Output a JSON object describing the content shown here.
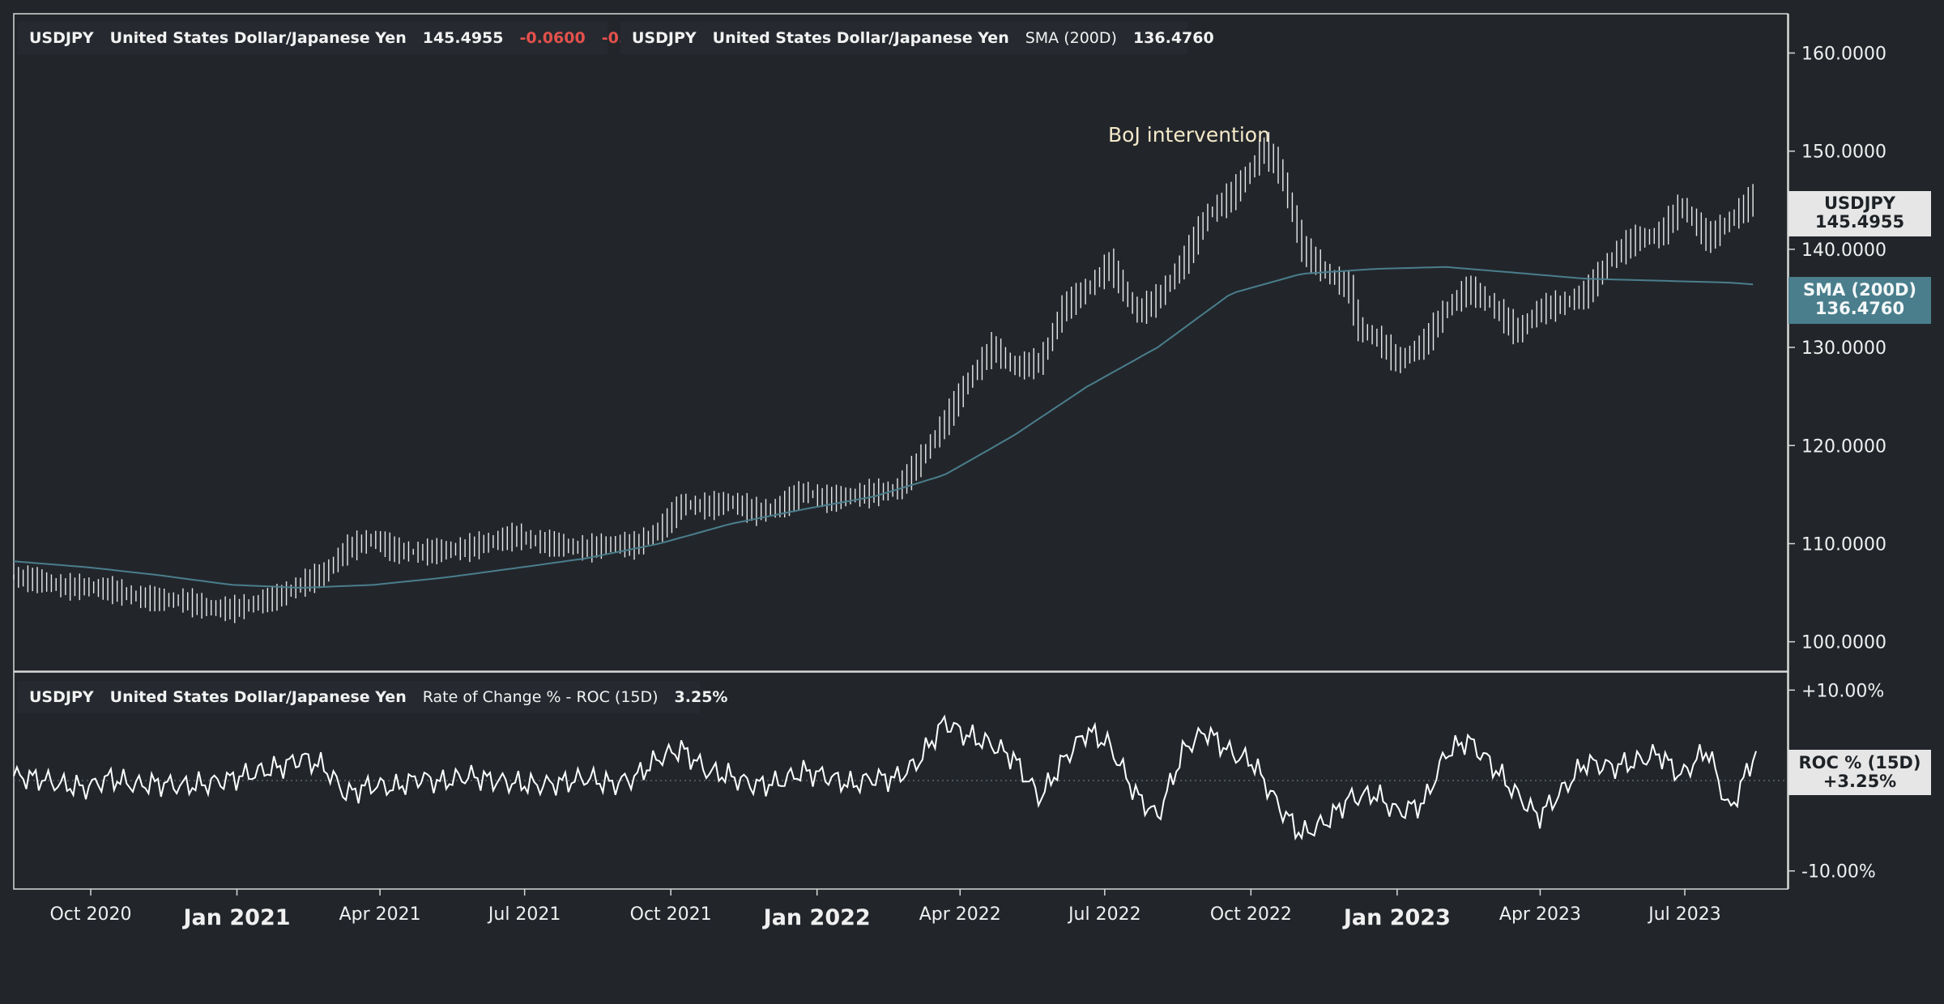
{
  "legend_main": {
    "symbol": "USDJPY",
    "name": "United States Dollar/Japanese Yen",
    "last": "145.4955",
    "change": "-0.0600",
    "change_pct": "-0.04",
    "pct_unit": "%",
    "swatch_color": "#ffffff"
  },
  "legend_sma": {
    "symbol": "USDJPY",
    "name": "United States Dollar/Japanese Yen",
    "study": "SMA (200D)",
    "value": "136.4760",
    "swatch_color": "#4a7e8c"
  },
  "legend_roc": {
    "symbol": "USDJPY",
    "name": "United States Dollar/Japanese Yen",
    "study": "Rate of Change % - ROC (15D)",
    "value": "3.25%"
  },
  "tags": {
    "price_label": "USDJPY",
    "price_value": "145.4955",
    "sma_label": "SMA (200D)",
    "sma_value": "136.4760",
    "roc_label": "ROC % (15D)",
    "roc_value": "+3.25%"
  },
  "annotation": "BoJ intervention",
  "colors": {
    "background": "#22262b",
    "price_bars": "#e8e8e8",
    "sma_line": "#4a7e8c",
    "roc_line": "#ffffff",
    "negative": "#e4514c"
  },
  "chart_data": [
    {
      "type": "ohlc",
      "series": [
        {
          "name": "USDJPY",
          "x": [
            "2020-08-15",
            "2020-09-01",
            "2020-09-15",
            "2020-10-01",
            "2020-10-15",
            "2020-11-01",
            "2020-11-15",
            "2020-12-01",
            "2020-12-15",
            "2021-01-01",
            "2021-01-15",
            "2021-02-01",
            "2021-02-15",
            "2021-03-01",
            "2021-03-15",
            "2021-04-01",
            "2021-04-15",
            "2021-05-01",
            "2021-05-15",
            "2021-06-01",
            "2021-06-15",
            "2021-07-01",
            "2021-07-15",
            "2021-08-01",
            "2021-08-15",
            "2021-09-01",
            "2021-09-15",
            "2021-10-01",
            "2021-10-15",
            "2021-11-01",
            "2021-11-15",
            "2021-12-01",
            "2021-12-15",
            "2022-01-01",
            "2022-01-15",
            "2022-02-01",
            "2022-02-15",
            "2022-03-01",
            "2022-03-15",
            "2022-04-01",
            "2022-04-15",
            "2022-05-01",
            "2022-05-15",
            "2022-06-01",
            "2022-06-15",
            "2022-07-01",
            "2022-07-15",
            "2022-08-01",
            "2022-08-15",
            "2022-09-01",
            "2022-09-15",
            "2022-10-01",
            "2022-10-15",
            "2022-10-21",
            "2022-11-01",
            "2022-11-15",
            "2022-12-01",
            "2022-12-15",
            "2022-12-20",
            "2023-01-01",
            "2023-01-15",
            "2023-02-01",
            "2023-02-15",
            "2023-03-01",
            "2023-03-15",
            "2023-04-01",
            "2023-04-15",
            "2023-05-01",
            "2023-05-15",
            "2023-06-01",
            "2023-06-15",
            "2023-07-01",
            "2023-07-15",
            "2023-08-01",
            "2023-08-15",
            "2023-09-01"
          ],
          "close": [
            106.6,
            106.2,
            105.6,
            105.6,
            105.3,
            104.6,
            104.3,
            104.2,
            103.5,
            103.3,
            103.9,
            104.7,
            106.0,
            107.0,
            109.5,
            110.5,
            109.3,
            109.1,
            109.3,
            109.6,
            110.2,
            110.8,
            110.2,
            109.8,
            109.5,
            110.0,
            109.8,
            111.5,
            114.0,
            113.8,
            114.3,
            113.2,
            113.7,
            115.3,
            114.5,
            114.9,
            115.2,
            115.5,
            118.3,
            122.5,
            126.5,
            130.0,
            128.0,
            128.5,
            134.0,
            136.0,
            138.5,
            133.5,
            135.0,
            139.0,
            143.5,
            145.5,
            148.5,
            150.5,
            148.0,
            140.0,
            137.5,
            136.0,
            132.0,
            131.0,
            128.5,
            130.5,
            134.0,
            136.0,
            134.5,
            131.5,
            133.8,
            134.5,
            135.5,
            139.3,
            141.0,
            141.5,
            144.5,
            141.0,
            143.0,
            145.5
          ]
        },
        {
          "name": "SMA (200D)",
          "x": [
            "2020-08-15",
            "2020-10-01",
            "2020-11-15",
            "2021-01-01",
            "2021-02-15",
            "2021-04-01",
            "2021-05-15",
            "2021-07-01",
            "2021-08-15",
            "2021-10-01",
            "2021-11-15",
            "2022-01-01",
            "2022-02-15",
            "2022-04-01",
            "2022-05-15",
            "2022-07-01",
            "2022-08-15",
            "2022-10-01",
            "2022-11-15",
            "2023-01-01",
            "2023-02-15",
            "2023-04-01",
            "2023-05-15",
            "2023-07-01",
            "2023-08-15",
            "2023-09-01"
          ],
          "values": [
            108.2,
            107.6,
            106.8,
            105.8,
            105.5,
            105.8,
            106.5,
            107.5,
            108.5,
            110.0,
            112.0,
            113.5,
            114.8,
            117.0,
            121.0,
            126.0,
            130.0,
            135.5,
            137.5,
            138.0,
            138.2,
            137.6,
            137.0,
            136.8,
            136.6,
            136.4
          ]
        }
      ],
      "yticks": [
        "100.0000",
        "110.0000",
        "120.0000",
        "130.0000",
        "140.0000",
        "150.0000",
        "160.0000"
      ],
      "ylim": [
        97,
        164
      ],
      "annotation": {
        "text": "BoJ intervention",
        "x": "2022-10-21"
      }
    },
    {
      "type": "line",
      "series": [
        {
          "name": "ROC % (15D)",
          "x": [
            "2020-08-15",
            "2020-09-01",
            "2020-09-15",
            "2020-10-01",
            "2020-10-15",
            "2020-11-01",
            "2020-11-15",
            "2020-12-01",
            "2020-12-15",
            "2021-01-01",
            "2021-01-15",
            "2021-02-01",
            "2021-02-15",
            "2021-03-01",
            "2021-03-15",
            "2021-04-01",
            "2021-04-15",
            "2021-05-01",
            "2021-05-15",
            "2021-06-01",
            "2021-06-15",
            "2021-07-01",
            "2021-07-15",
            "2021-08-01",
            "2021-08-15",
            "2021-09-01",
            "2021-09-15",
            "2021-10-01",
            "2021-10-15",
            "2021-11-01",
            "2021-11-15",
            "2021-12-01",
            "2021-12-15",
            "2022-01-01",
            "2022-01-15",
            "2022-02-01",
            "2022-02-15",
            "2022-03-01",
            "2022-03-15",
            "2022-04-01",
            "2022-04-15",
            "2022-05-01",
            "2022-05-15",
            "2022-06-01",
            "2022-06-15",
            "2022-07-01",
            "2022-07-15",
            "2022-08-01",
            "2022-08-15",
            "2022-09-01",
            "2022-09-15",
            "2022-10-01",
            "2022-10-15",
            "2022-11-01",
            "2022-11-15",
            "2022-12-01",
            "2022-12-15",
            "2023-01-01",
            "2023-01-15",
            "2023-02-01",
            "2023-02-15",
            "2023-03-01",
            "2023-03-15",
            "2023-04-01",
            "2023-04-15",
            "2023-05-01",
            "2023-05-15",
            "2023-06-01",
            "2023-06-15",
            "2023-07-01",
            "2023-07-15",
            "2023-08-01",
            "2023-08-15",
            "2023-09-01"
          ],
          "values": [
            0.5,
            0.2,
            -0.5,
            -0.8,
            0.3,
            -0.5,
            -0.3,
            -0.6,
            -0.4,
            0.2,
            0.8,
            1.5,
            2.5,
            1.5,
            -1.5,
            -0.5,
            -0.8,
            0.3,
            -0.2,
            0.5,
            0.1,
            -0.3,
            -0.5,
            -0.2,
            0.3,
            -0.4,
            0.3,
            2.5,
            3.5,
            1.0,
            0.5,
            -0.5,
            -0.3,
            1.0,
            0.5,
            -0.5,
            0.3,
            0.2,
            2.0,
            6.5,
            5.0,
            4.0,
            2.5,
            -2.0,
            2.0,
            5.5,
            4.0,
            -1.5,
            -4.0,
            3.5,
            5.5,
            3.0,
            2.0,
            -3.0,
            -6.0,
            -4.5,
            -2.0,
            -1.5,
            -3.5,
            -2.5,
            3.0,
            4.5,
            2.0,
            -1.5,
            -4.0,
            -1.0,
            2.0,
            1.5,
            2.0,
            3.0,
            0.5,
            3.5,
            -3.5,
            3.25
          ]
        }
      ],
      "yticks": [
        "+10.00%",
        "+0.00%",
        "-10.00%"
      ],
      "ylim": [
        -12,
        12
      ]
    }
  ],
  "xaxis": {
    "ticks": [
      {
        "label": "Oct 2020",
        "x": "2020-10-01",
        "major": false
      },
      {
        "label": "Jan 2021",
        "x": "2021-01-01",
        "major": true
      },
      {
        "label": "Apr 2021",
        "x": "2021-04-01",
        "major": false
      },
      {
        "label": "Jul 2021",
        "x": "2021-07-01",
        "major": false
      },
      {
        "label": "Oct 2021",
        "x": "2021-10-01",
        "major": false
      },
      {
        "label": "Jan 2022",
        "x": "2022-01-01",
        "major": true
      },
      {
        "label": "Apr 2022",
        "x": "2022-04-01",
        "major": false
      },
      {
        "label": "Jul 2022",
        "x": "2022-07-01",
        "major": false
      },
      {
        "label": "Oct 2022",
        "x": "2022-10-01",
        "major": false
      },
      {
        "label": "Jan 2023",
        "x": "2023-01-01",
        "major": true
      },
      {
        "label": "Apr 2023",
        "x": "2023-04-01",
        "major": false
      },
      {
        "label": "Jul 2023",
        "x": "2023-07-01",
        "major": false
      }
    ]
  }
}
